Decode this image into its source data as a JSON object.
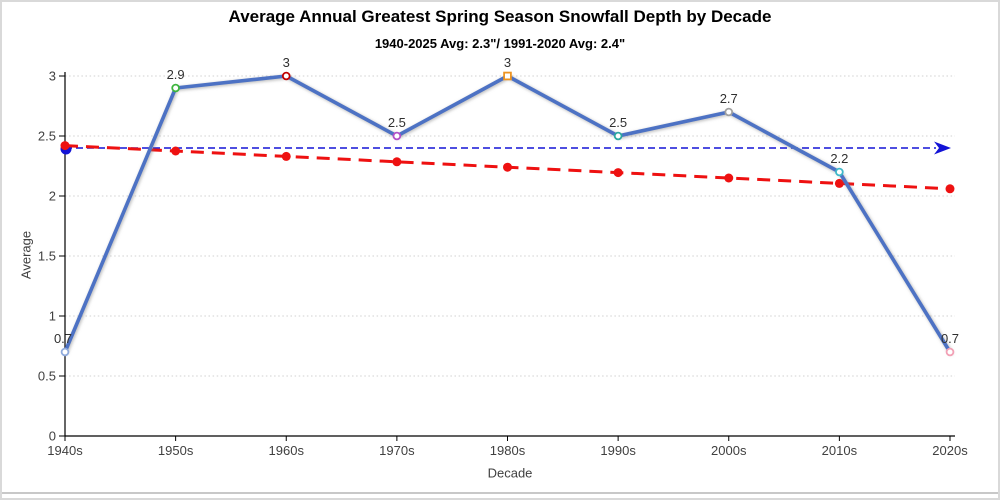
{
  "header": {
    "title": "Average Annual Greatest Spring Season Snowfall Depth by Decade",
    "subtitle": "1940-2025 Avg: 2.3\"/ 1991-2020 Avg: 2.4\""
  },
  "chart_data": {
    "type": "line",
    "title": "Average Annual Greatest Spring Season Snowfall Depth by Decade",
    "subtitle": "1940-2025 Avg: 2.3\"/ 1991-2020 Avg: 2.4\"",
    "xlabel": "Decade",
    "ylabel": "Average",
    "categories": [
      "1940s",
      "1950s",
      "1960s",
      "1970s",
      "1980s",
      "1990s",
      "2000s",
      "2010s",
      "2020s"
    ],
    "yticks": [
      "0",
      "0.5",
      "1",
      "1.5",
      "2",
      "2.5",
      "3"
    ],
    "ytick_values": [
      0,
      0.5,
      1,
      1.5,
      2,
      2.5,
      3
    ],
    "ylim": [
      0,
      3
    ],
    "grid": "horizontal-dotted",
    "legend": "none",
    "series": [
      {
        "name": "snowfall-depth-by-decade",
        "values": [
          0.7,
          2.9,
          3,
          2.5,
          3,
          2.5,
          2.7,
          2.2,
          0.7
        ],
        "labels": [
          "0.7",
          "2.9",
          "3",
          "2.5",
          "3",
          "2.5",
          "2.7",
          "2.2",
          "0.7"
        ],
        "color": "#4D72C4",
        "point_colors": [
          "#8FAADC",
          "#3DB53D",
          "#C00000",
          "#B24FC8",
          "#ED9422",
          "#2BA8A0",
          "#A0A0A0",
          "#3FB8C9",
          "#F2A0B5"
        ],
        "point_shapes": [
          "circle",
          "circle",
          "circle",
          "circle",
          "square",
          "circle",
          "circle",
          "circle",
          "circle"
        ]
      },
      {
        "name": "linear-trend",
        "values": [
          2.42,
          2.375,
          2.33,
          2.285,
          2.24,
          2.195,
          2.15,
          2.105,
          2.06
        ],
        "style": "dashed",
        "color": "#EE1111"
      }
    ],
    "reference_line": {
      "name": "1991-2020-average-line",
      "value": 2.4,
      "color": "#1313D6",
      "style": "dashed",
      "start_dot": true,
      "end_arrow": true
    },
    "colors": {
      "gridline": "#d9d9d9",
      "axis": "#000000",
      "tick_label": "#404040",
      "data_label": "#303030"
    }
  }
}
